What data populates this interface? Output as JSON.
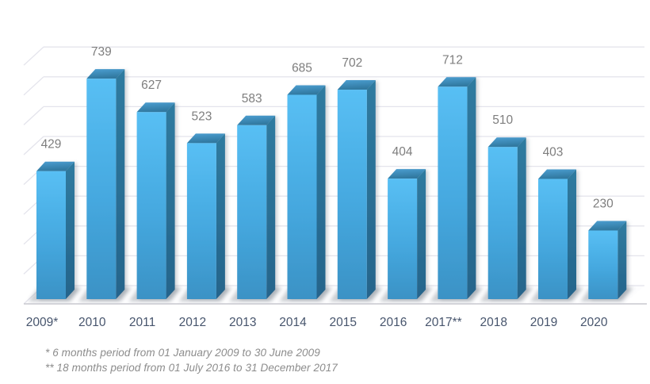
{
  "chart_data": {
    "type": "bar",
    "subtype": "3d-column",
    "title": "",
    "categories": [
      "2009*",
      "2010",
      "2011",
      "2012",
      "2013",
      "2014",
      "2015",
      "2016",
      "2017**",
      "2018",
      "2019",
      "2020"
    ],
    "values": [
      429,
      739,
      627,
      523,
      583,
      685,
      702,
      404,
      712,
      510,
      403,
      230
    ],
    "ylim": [
      0,
      800
    ],
    "y_major_unit": 100,
    "grid": true,
    "y_tick_labels_shown": false,
    "legend_position": "none",
    "value_labels_shown": true,
    "footnotes": [
      "* 6 months period from 01 January 2009 to 30 June 2009",
      "** 18 months period from 01 July 2016 to 31 December 2017"
    ],
    "colors": {
      "bar_front_top": "#58BFF4",
      "bar_front_mid": "#45A8DF",
      "bar_front_bottom": "#3B92C5",
      "bar_top_light": "#4C9FD2",
      "bar_top_dark": "#30789F",
      "bar_side_top": "#2F7BA0",
      "bar_side_bottom": "#25648B",
      "gridline": "#E4E4EC",
      "axis_line": "#C8C8CF",
      "floor": "#FDFDFE",
      "bar_ground_shadow": "#858C94",
      "value_label": "#7E7E7E",
      "category_label": "#47556D",
      "footnote": "#8C8C8C",
      "background": "#FFFFFF"
    }
  }
}
